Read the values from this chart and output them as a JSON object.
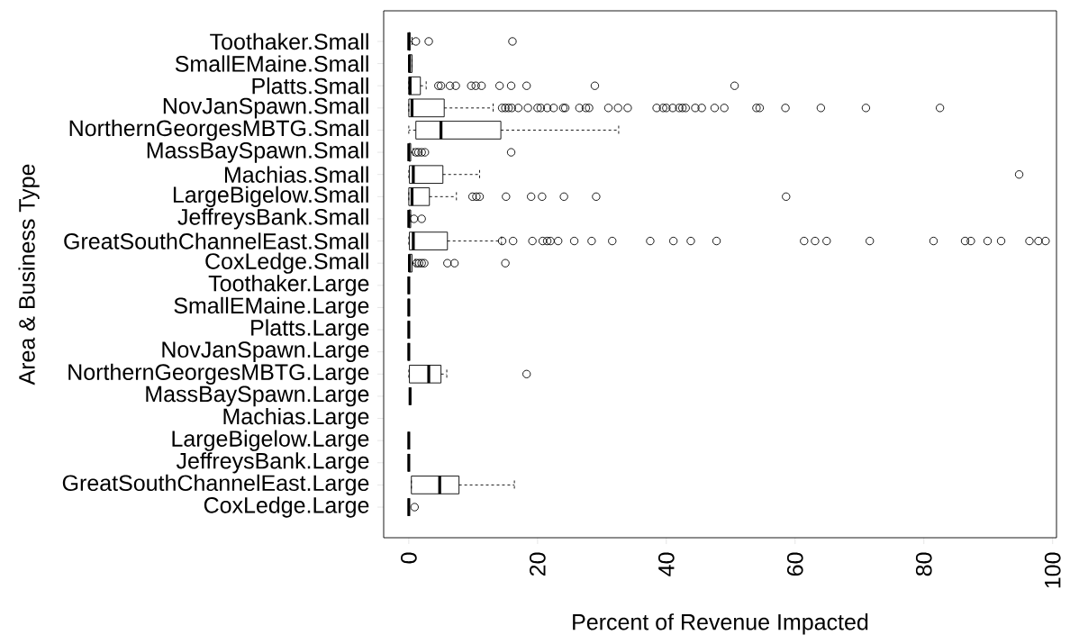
{
  "chart_data": {
    "type": "box",
    "orientation": "horizontal",
    "xlabel": "Percent of Revenue Impacted",
    "ylabel": "Area & Business Type",
    "categories": [
      "Toothaker.Small",
      "SmallEMaine.Small",
      "Platts.Small",
      "NovJanSpawn.Small",
      "NorthernGeorgesMBTG.Small",
      "MassBaySpawn.Small",
      "Machias.Small",
      "LargeBigelow.Small",
      "JeffreysBank.Small",
      "GreatSouthChannelEast.Small",
      "CoxLedge.Small",
      "Toothaker.Large",
      "SmallEMaine.Large",
      "Platts.Large",
      "NovJanSpawn.Large",
      "NorthernGeorgesMBTG.Large",
      "MassBaySpawn.Large",
      "Machias.Large",
      "LargeBigelow.Large",
      "JeffreysBank.Large",
      "GreatSouthChannelEast.Large",
      "CoxLedge.Large"
    ],
    "boxes": [
      {
        "low": 0,
        "q1": 0,
        "median": 0,
        "q3": 0.2,
        "high": 0.5,
        "outliers": [
          1.1,
          3.1,
          16.1
        ]
      },
      {
        "low": 0,
        "q1": 0,
        "median": 0.1,
        "q3": 0.5,
        "high": 0.5
      },
      {
        "low": 0,
        "q1": 0,
        "median": 0.2,
        "q3": 1.8,
        "high": 2.7,
        "outliers": [
          4.6,
          5.0,
          6.4,
          7.3,
          9.7,
          10.4,
          11.3,
          14.1,
          15.9,
          18.3,
          28.9,
          50.6
        ]
      },
      {
        "low": 0,
        "q1": 0,
        "median": 0.5,
        "q3": 5.5,
        "high": 13.1,
        "outliers": [
          14.5,
          15,
          15.5,
          16,
          17,
          18.5,
          20,
          20.5,
          21.5,
          22.5,
          24,
          24.3,
          26.5,
          27.5,
          28,
          31,
          32.5,
          34,
          38.5,
          39.5,
          40,
          41,
          42,
          42.5,
          43,
          44.5,
          45.5,
          47.5,
          49,
          54,
          54.5,
          58.5,
          64,
          71,
          82.5
        ]
      },
      {
        "low": 0,
        "q1": 1.1,
        "median": 5.0,
        "q3": 14.3,
        "high": 32.6
      },
      {
        "low": 0,
        "q1": 0,
        "median": 0,
        "q3": 0.3,
        "high": 0.7,
        "outliers": [
          1.1,
          1.5,
          2.0,
          2.5,
          15.9
        ]
      },
      {
        "low": 0,
        "q1": 0.1,
        "median": 0.7,
        "q3": 5.3,
        "high": 11.0,
        "outliers": [
          94.8
        ]
      },
      {
        "low": 0,
        "q1": 0,
        "median": 0.5,
        "q3": 3.2,
        "high": 7.4,
        "outliers": [
          9.9,
          10.5,
          11.0,
          15.1,
          19.0,
          20.7,
          24.1,
          29.1,
          58.6
        ]
      },
      {
        "low": 0,
        "q1": 0,
        "median": 0,
        "q3": 0.3,
        "high": 0.3,
        "outliers": [
          0.8,
          2.0
        ]
      },
      {
        "low": 0,
        "q1": 0.1,
        "median": 0.7,
        "q3": 6.0,
        "high": 14.4,
        "outliers": [
          14.5,
          16.2,
          19.2,
          20.8,
          21.5,
          22.0,
          23.2,
          25.7,
          28.4,
          31.6,
          37.5,
          41.1,
          43.8,
          47.8,
          61.4,
          63.1,
          64.9,
          71.6,
          81.5,
          86.4,
          87.3,
          89.9,
          92.0,
          96.4,
          97.8,
          98.9
        ]
      },
      {
        "low": 0,
        "q1": 0,
        "median": 0.1,
        "q3": 0.5,
        "high": 1.0,
        "outliers": [
          1.2,
          1.6,
          2.0,
          2.4,
          6.0,
          7.1,
          15.0
        ]
      },
      {
        "low": 0,
        "q1": 0,
        "median": 0,
        "q3": 0,
        "high": 0
      },
      {
        "low": 0,
        "q1": 0,
        "median": 0,
        "q3": 0,
        "high": 0
      },
      {
        "low": 0,
        "q1": 0,
        "median": 0,
        "q3": 0,
        "high": 0
      },
      {
        "low": 0,
        "q1": 0,
        "median": 0,
        "q3": 0,
        "high": 0
      },
      {
        "low": 0,
        "q1": 0.1,
        "median": 3.1,
        "q3": 5.0,
        "high": 5.9,
        "outliers": [
          18.3
        ]
      },
      {
        "low": 0.2,
        "q1": 0.2,
        "median": 0.2,
        "q3": 0.2,
        "high": 0.2
      },
      null,
      {
        "low": 0,
        "q1": 0,
        "median": 0,
        "q3": 0,
        "high": 0
      },
      {
        "low": 0,
        "q1": 0,
        "median": 0,
        "q3": 0,
        "high": 0
      },
      {
        "low": 0.4,
        "q1": 0.4,
        "median": 4.8,
        "q3": 7.8,
        "high": 16.4
      },
      {
        "low": 0,
        "q1": 0,
        "median": 0,
        "q3": 0,
        "high": 0,
        "outliers": [
          0.9
        ]
      }
    ],
    "xlim": [
      -3.9,
      100.6
    ],
    "xticks": [
      0,
      20,
      40,
      60,
      80,
      100
    ]
  }
}
